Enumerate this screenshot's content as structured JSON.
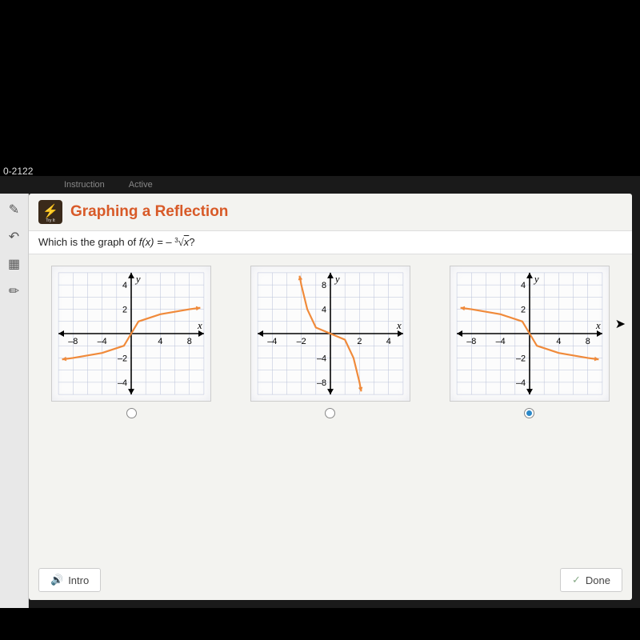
{
  "status": {
    "text": "0-2122"
  },
  "tabs": {
    "t1": "Instruction",
    "t2": "Active"
  },
  "header": {
    "try_label": "Try It",
    "title": "Graphing a Reflection"
  },
  "question": {
    "prefix": "Which is the graph of ",
    "func_lhs": "f(x) = –",
    "root_index": "3",
    "radicand": "x",
    "suffix": "?"
  },
  "graphsA": {
    "type": "line",
    "xlim": [
      -10,
      10
    ],
    "ylim": [
      -5,
      5
    ],
    "xticks": [
      -8,
      -4,
      4,
      8
    ],
    "yticks": [
      -4,
      -2,
      2,
      4
    ],
    "xlabel": "x",
    "ylabel": "y",
    "grid_color": "#b8c0d8",
    "curve_color": "#f08a3a",
    "curve_pts": [
      [
        -9.5,
        -2.12
      ],
      [
        -8,
        -2
      ],
      [
        -4,
        -1.59
      ],
      [
        -1,
        -1
      ],
      [
        0,
        0
      ],
      [
        1,
        1
      ],
      [
        4,
        1.59
      ],
      [
        8,
        2
      ],
      [
        9.5,
        2.12
      ]
    ],
    "selected": false
  },
  "graphsB": {
    "type": "line",
    "xlim": [
      -5,
      5
    ],
    "ylim": [
      -10,
      10
    ],
    "xticks": [
      -4,
      -2,
      2,
      4
    ],
    "yticks": [
      -8,
      -4,
      4,
      8
    ],
    "xlabel": "x",
    "ylabel": "y",
    "grid_color": "#b8c0d8",
    "curve_color": "#f08a3a",
    "curve_pts": [
      [
        -2.12,
        9.5
      ],
      [
        -2,
        8
      ],
      [
        -1.59,
        4
      ],
      [
        -1,
        1
      ],
      [
        0,
        0
      ],
      [
        1,
        -1
      ],
      [
        1.59,
        -4
      ],
      [
        2,
        -8
      ],
      [
        2.12,
        -9.5
      ]
    ],
    "selected": false
  },
  "graphsC": {
    "type": "line",
    "xlim": [
      -10,
      10
    ],
    "ylim": [
      -5,
      5
    ],
    "xticks": [
      -8,
      -4,
      4,
      8
    ],
    "yticks": [
      -4,
      -2,
      2,
      4
    ],
    "xlabel": "x",
    "ylabel": "y",
    "grid_color": "#b8c0d8",
    "curve_color": "#f08a3a",
    "curve_pts": [
      [
        -9.5,
        2.12
      ],
      [
        -8,
        2
      ],
      [
        -4,
        1.59
      ],
      [
        -1,
        1
      ],
      [
        0,
        0
      ],
      [
        1,
        -1
      ],
      [
        4,
        -1.59
      ],
      [
        8,
        -2
      ],
      [
        9.5,
        -2.12
      ]
    ],
    "selected": true
  },
  "buttons": {
    "intro": "Intro",
    "done": "Done"
  }
}
